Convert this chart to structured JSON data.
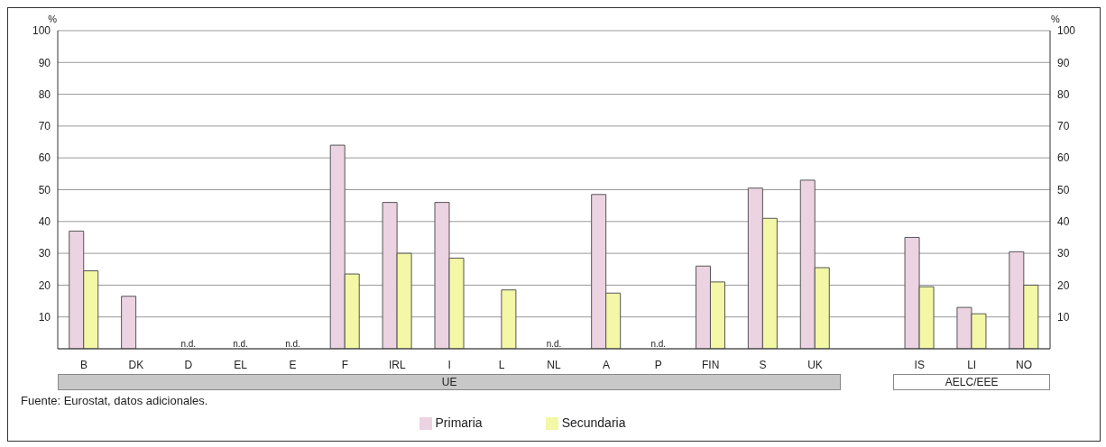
{
  "chart_data": {
    "type": "bar",
    "categories": [
      "B",
      "DK",
      "D",
      "EL",
      "E",
      "F",
      "IRL",
      "I",
      "L",
      "NL",
      "A",
      "P",
      "FIN",
      "S",
      "UK",
      null,
      "IS",
      "LI",
      "NO"
    ],
    "series": [
      {
        "name": "Primaria",
        "color": "#ecd3e1",
        "values": [
          37,
          16.5,
          null,
          null,
          null,
          64,
          46,
          46,
          null,
          null,
          48.5,
          null,
          26,
          50.5,
          53,
          null,
          35,
          13,
          30.5
        ],
        "value_labels": [
          null,
          null,
          "n.d.",
          "n.d.",
          "n.d.",
          null,
          null,
          null,
          null,
          "n.d.",
          null,
          "n.d.",
          null,
          null,
          null,
          null,
          null,
          null,
          null
        ]
      },
      {
        "name": "Secundaria",
        "color": "#f3f7a6",
        "values": [
          24.5,
          null,
          null,
          null,
          null,
          23.5,
          30,
          28.5,
          18.5,
          null,
          17.5,
          null,
          21,
          41,
          25.5,
          null,
          19.5,
          11,
          20
        ]
      }
    ],
    "ylabel": "%",
    "y2label": "%",
    "ylim": [
      0,
      100
    ],
    "yticks": [
      10,
      20,
      30,
      40,
      50,
      60,
      70,
      80,
      90,
      100
    ],
    "y2lim": [
      0,
      100
    ],
    "y2ticks": [
      10,
      20,
      30,
      40,
      50,
      60,
      70,
      80,
      90,
      100
    ],
    "grid": "y",
    "legend": "bottom",
    "annotations": [
      "UE",
      "AELC/EEE",
      "Fuente: Eurostat, datos adicionales."
    ]
  }
}
